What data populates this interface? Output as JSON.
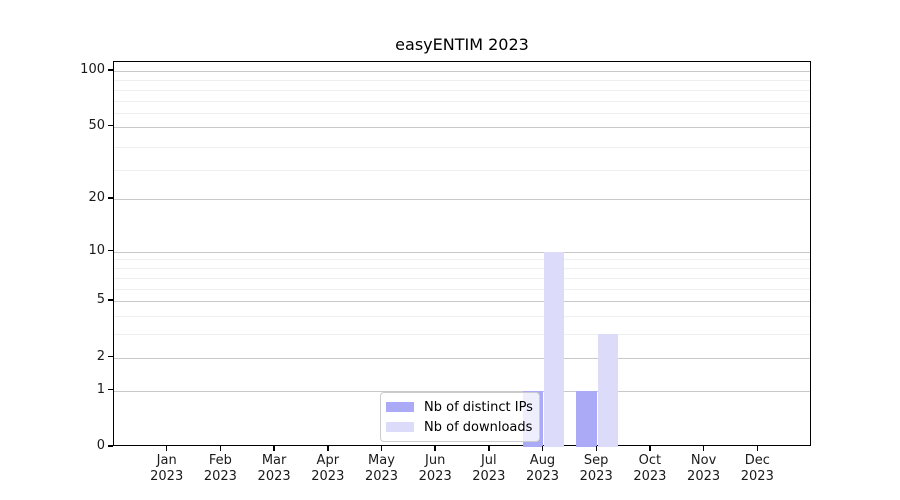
{
  "chart_data": {
    "type": "bar",
    "title": "easyENTIM 2023",
    "categories": [
      "Jan",
      "Feb",
      "Mar",
      "Apr",
      "May",
      "Jun",
      "Jul",
      "Aug",
      "Sep",
      "Oct",
      "Nov",
      "Dec"
    ],
    "x_sublabel_year": "2023",
    "series": [
      {
        "name": "Nb of distinct IPs",
        "color": "#aaaaf6",
        "values": [
          0,
          0,
          0,
          0,
          0,
          0,
          0,
          1,
          1,
          0,
          0,
          0
        ]
      },
      {
        "name": "Nb of downloads",
        "color": "#dcdcfa",
        "values": [
          0,
          0,
          0,
          0,
          0,
          0,
          0,
          10,
          3,
          0,
          0,
          0
        ]
      }
    ],
    "yscale": "log1p",
    "ylim": [
      0,
      112
    ],
    "yticks": [
      0,
      1,
      2,
      5,
      10,
      20,
      50,
      100
    ],
    "minor_yticks": [
      3,
      4,
      6,
      7,
      8,
      9,
      29,
      39,
      59,
      69,
      79,
      89
    ],
    "grid": "horizontal",
    "legend_position": "lower-center"
  }
}
